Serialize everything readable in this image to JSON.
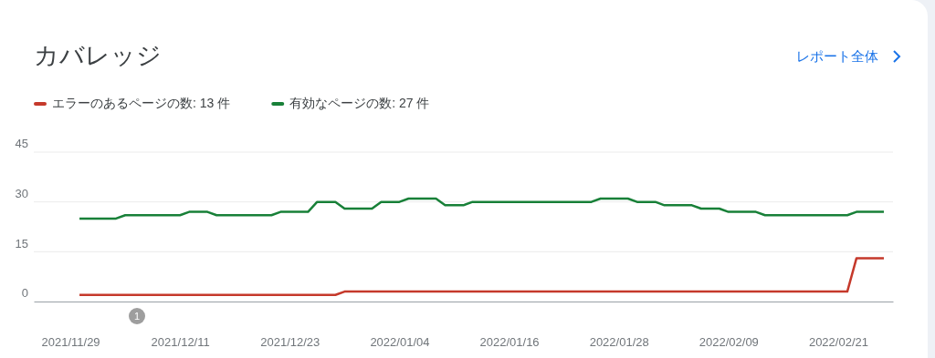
{
  "chart_data": {
    "type": "line",
    "title": "カバレッジ",
    "annotations": [
      "レポート全体",
      "1"
    ],
    "legend": "top left",
    "grid": "y",
    "line_style": "solid",
    "xlim": [
      "2021-11-25",
      "2022-02-27"
    ],
    "xticks": [
      {
        "value": "2021-11-29",
        "label": "2021/11/29"
      },
      {
        "value": "2021-12-11",
        "label": "2021/12/11"
      },
      {
        "value": "2021-12-23",
        "label": "2021/12/23"
      },
      {
        "value": "2022-01-04",
        "label": "2022/01/04"
      },
      {
        "value": "2022-01-16",
        "label": "2022/01/16"
      },
      {
        "value": "2022-01-28",
        "label": "2022/01/28"
      },
      {
        "value": "2022-02-09",
        "label": "2022/02/09"
      },
      {
        "value": "2022-02-21",
        "label": "2022/02/21"
      }
    ],
    "ylim": [
      0,
      45
    ],
    "yticks": [
      0,
      15,
      30,
      45
    ],
    "series": [
      {
        "name": "エラーのあるページの数: 13 件",
        "color": "#c5392b",
        "x": [
          "2021-11-30",
          "2021-12-28",
          "2021-12-29",
          "2022-02-22",
          "2022-02-23",
          "2022-02-26"
        ],
        "values": [
          2,
          2,
          3,
          3,
          13,
          13
        ]
      },
      {
        "name": "有効なページの数: 27 件",
        "color": "#188038",
        "x": [
          "2021-11-30",
          "2021-12-04",
          "2021-12-05",
          "2021-12-11",
          "2021-12-12",
          "2021-12-14",
          "2021-12-15",
          "2021-12-21",
          "2021-12-22",
          "2021-12-25",
          "2021-12-26",
          "2021-12-28",
          "2021-12-29",
          "2022-01-01",
          "2022-01-02",
          "2022-01-04",
          "2022-01-05",
          "2022-01-08",
          "2022-01-09",
          "2022-01-11",
          "2022-01-12",
          "2022-01-25",
          "2022-01-26",
          "2022-01-29",
          "2022-01-30",
          "2022-02-01",
          "2022-02-02",
          "2022-02-05",
          "2022-02-06",
          "2022-02-08",
          "2022-02-09",
          "2022-02-12",
          "2022-02-13",
          "2022-02-22",
          "2022-02-23",
          "2022-02-26"
        ],
        "values": [
          25,
          25,
          26,
          26,
          27,
          27,
          26,
          26,
          27,
          27,
          30,
          30,
          28,
          28,
          30,
          30,
          31,
          31,
          29,
          29,
          30,
          30,
          31,
          31,
          30,
          30,
          29,
          29,
          28,
          28,
          27,
          27,
          26,
          26,
          27,
          27
        ]
      }
    ]
  }
}
